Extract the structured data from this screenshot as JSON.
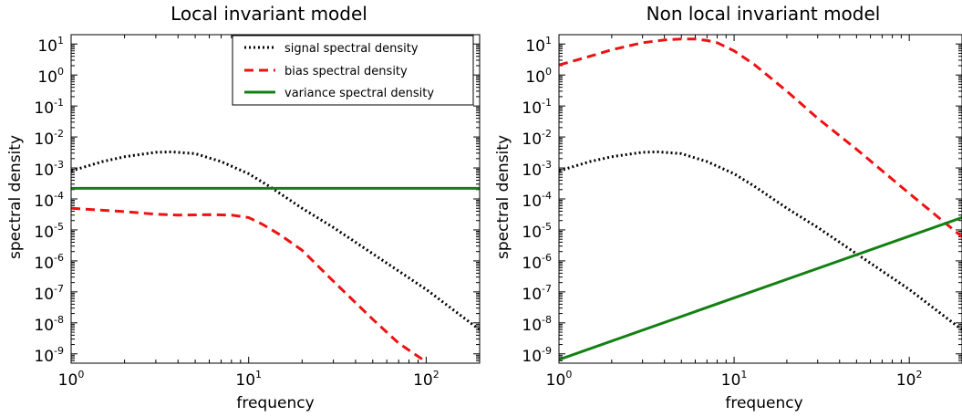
{
  "figure": {
    "colors": {
      "signal": "#000000",
      "bias": "#ee1111",
      "variance": "#138013"
    }
  },
  "chart_data": [
    {
      "type": "line",
      "title": "Local invariant model",
      "xlabel": "frequency",
      "ylabel": "spectral density",
      "xscale": "log",
      "yscale": "log",
      "xlim": [
        1,
        200
      ],
      "ylim": [
        5e-10,
        20
      ],
      "x_ticks": [
        1,
        10,
        100
      ],
      "x_tick_labels": [
        {
          "base": "10",
          "exp": "0"
        },
        {
          "base": "10",
          "exp": "1"
        },
        {
          "base": "10",
          "exp": "2"
        }
      ],
      "y_ticks": [
        1e-09,
        1e-08,
        1e-07,
        1e-06,
        1e-05,
        0.0001,
        0.001,
        0.01,
        0.1,
        1,
        10
      ],
      "y_tick_labels": [
        {
          "base": "10",
          "exp": "-9"
        },
        {
          "base": "10",
          "exp": "-8"
        },
        {
          "base": "10",
          "exp": "-7"
        },
        {
          "base": "10",
          "exp": "-6"
        },
        {
          "base": "10",
          "exp": "-5"
        },
        {
          "base": "10",
          "exp": "-4"
        },
        {
          "base": "10",
          "exp": "-3"
        },
        {
          "base": "10",
          "exp": "-2"
        },
        {
          "base": "10",
          "exp": "-1"
        },
        {
          "base": "10",
          "exp": "0"
        },
        {
          "base": "10",
          "exp": "1"
        }
      ],
      "legend": "top-right",
      "grid": false,
      "series": [
        {
          "name": "signal spectral density",
          "style": "dotted",
          "color": "#000000",
          "x": [
            1,
            1.5,
            2,
            3,
            3.7,
            5,
            7,
            10,
            13,
            20,
            30,
            50,
            100,
            200
          ],
          "y": [
            0.0008,
            0.0016,
            0.0023,
            0.0032,
            0.0033,
            0.0029,
            0.0016,
            0.00065,
            0.00026,
            5e-05,
            1.2e-05,
            1.7e-06,
            1.2e-07,
            6e-09
          ]
        },
        {
          "name": "bias spectral density",
          "style": "dashed",
          "color": "#ee1111",
          "x": [
            1,
            2,
            3,
            4,
            6,
            8,
            10,
            12,
            15,
            20,
            30,
            50,
            70,
            100
          ],
          "y": [
            5e-05,
            3.9e-05,
            3.2e-05,
            3e-05,
            3.1e-05,
            3e-05,
            2.5e-05,
            1.5e-05,
            7e-06,
            2.2e-06,
            2.2e-07,
            1.3e-08,
            2.2e-09,
            5.5e-10
          ]
        },
        {
          "name": "variance spectral density",
          "style": "solid",
          "color": "#138013",
          "x": [
            1,
            200
          ],
          "y": [
            0.00022,
            0.00022
          ]
        }
      ]
    },
    {
      "type": "line",
      "title": "Non local invariant model",
      "xlabel": "frequency",
      "ylabel": "spectral density",
      "xscale": "log",
      "yscale": "log",
      "xlim": [
        1,
        200
      ],
      "ylim": [
        5e-10,
        20
      ],
      "x_ticks": [
        1,
        10,
        100
      ],
      "x_tick_labels": [
        {
          "base": "10",
          "exp": "0"
        },
        {
          "base": "10",
          "exp": "1"
        },
        {
          "base": "10",
          "exp": "2"
        }
      ],
      "y_ticks": [
        1e-09,
        1e-08,
        1e-07,
        1e-06,
        1e-05,
        0.0001,
        0.001,
        0.01,
        0.1,
        1,
        10
      ],
      "y_tick_labels": [
        {
          "base": "10",
          "exp": "-9"
        },
        {
          "base": "10",
          "exp": "-8"
        },
        {
          "base": "10",
          "exp": "-7"
        },
        {
          "base": "10",
          "exp": "-6"
        },
        {
          "base": "10",
          "exp": "-5"
        },
        {
          "base": "10",
          "exp": "-4"
        },
        {
          "base": "10",
          "exp": "-3"
        },
        {
          "base": "10",
          "exp": "-2"
        },
        {
          "base": "10",
          "exp": "-1"
        },
        {
          "base": "10",
          "exp": "0"
        },
        {
          "base": "10",
          "exp": "1"
        }
      ],
      "grid": false,
      "series": [
        {
          "style": "dotted",
          "color": "#000000",
          "x": [
            1,
            1.5,
            2,
            3,
            3.7,
            5,
            7,
            10,
            13,
            20,
            30,
            50,
            100,
            200
          ],
          "y": [
            0.0008,
            0.0016,
            0.0023,
            0.0032,
            0.0033,
            0.0029,
            0.0016,
            0.00065,
            0.00026,
            5e-05,
            1.2e-05,
            1.7e-06,
            1.2e-07,
            6e-09
          ]
        },
        {
          "style": "dashed",
          "color": "#ee1111",
          "x": [
            1,
            1.5,
            2,
            3,
            4,
            5,
            6,
            7,
            8,
            10,
            13,
            20,
            30,
            50,
            100,
            200
          ],
          "y": [
            2.1,
            4,
            6.5,
            11,
            13.5,
            14.5,
            14.5,
            13,
            11,
            6,
            2.2,
            0.3,
            0.04,
            0.004,
            0.00015,
            6e-06
          ]
        },
        {
          "style": "solid",
          "color": "#138013",
          "x": [
            1,
            200
          ],
          "y": [
            6.5e-10,
            2.5e-05
          ]
        }
      ]
    }
  ],
  "legend": {
    "entries": [
      {
        "label": "signal spectral density"
      },
      {
        "label": "bias spectral density"
      },
      {
        "label": "variance spectral density"
      }
    ]
  }
}
